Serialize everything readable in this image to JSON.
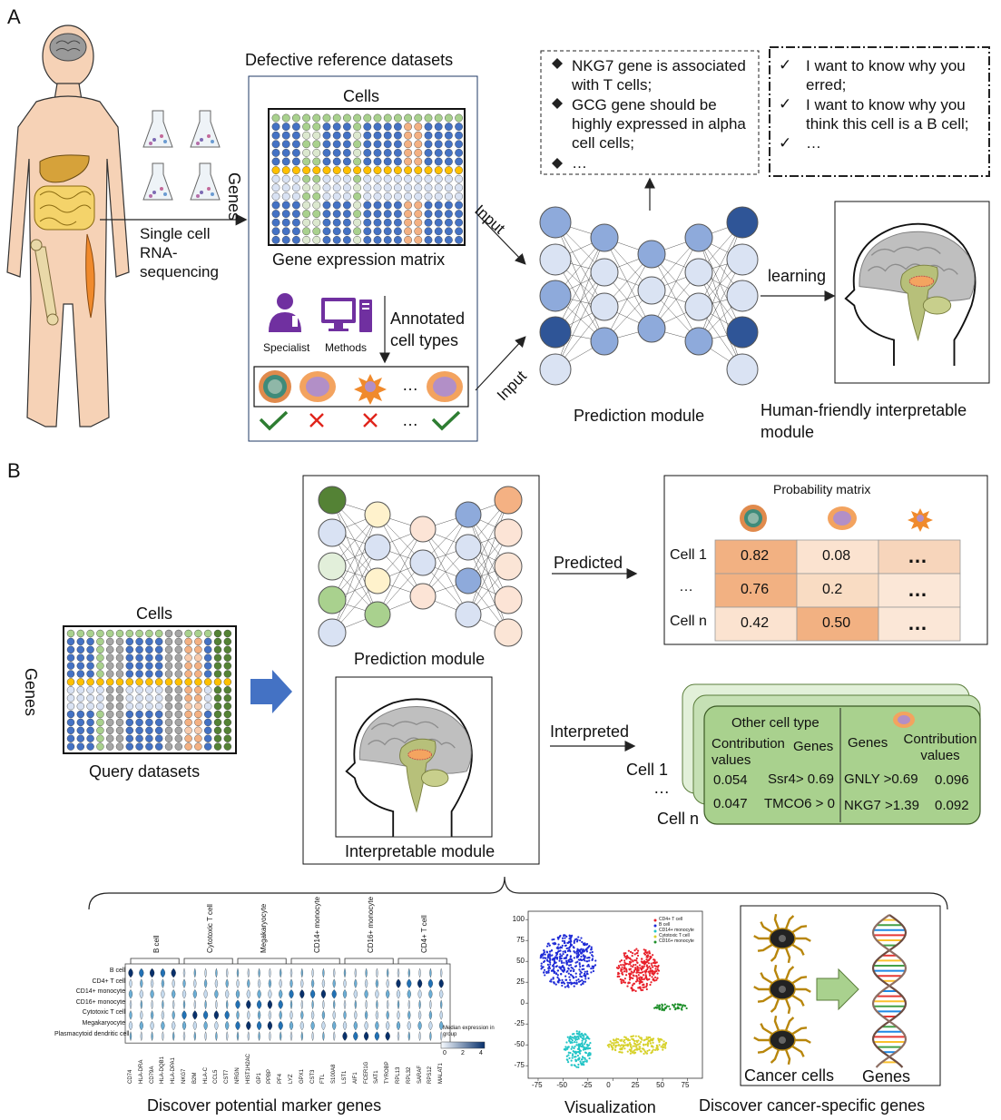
{
  "panels": {
    "a_label": "A",
    "b_label": "B"
  },
  "panel_a": {
    "reference_title": "Defective reference datasets",
    "cells_label": "Cells",
    "genes_label": "Genes",
    "matrix_caption": "Gene expression matrix",
    "sequencing_label": "Single cell RNA-sequencing",
    "specialist_label": "Specialist",
    "methods_label": "Methods",
    "annotated_label": "Annotated cell types",
    "ellipsis": "…",
    "input_label": "Input",
    "prediction_module": "Prediction module",
    "learning_label": "learning",
    "interpretable_caption": "Human-friendly interpretable module",
    "knowledge_box": [
      "NKG7 gene is associated with T cells;",
      "GCG gene should be highly expressed in alpha cell cells;",
      "…"
    ],
    "question_box": [
      "I want to know why you erred;",
      "I want to know why you think this cell is a B cell;",
      "…"
    ]
  },
  "panel_b": {
    "cells_label": "Cells",
    "genes_label": "Genes",
    "query_caption": "Query datasets",
    "prediction_module": "Prediction module",
    "interpretable_module": "Interpretable module",
    "predicted_label": "Predicted",
    "interpreted_label": "Interpreted",
    "probability_title": "Probability matrix",
    "probability_rows": [
      {
        "label": "Cell 1",
        "values": [
          "0.82",
          "0.08",
          "…"
        ]
      },
      {
        "label": "…",
        "values": [
          "0.76",
          "0.2",
          "…"
        ]
      },
      {
        "label": "Cell n",
        "values": [
          "0.42",
          "0.50",
          "…"
        ]
      }
    ],
    "probability_colors": [
      [
        "#f2b182",
        "#fbe3d0",
        "#f7d5bb"
      ],
      [
        "#f2b182",
        "#f9dcc3",
        "#fbe7d7"
      ],
      [
        "#fbe3d0",
        "#f2b182",
        "#fbe7d7"
      ]
    ],
    "contribution": {
      "other_cell_type": "Other cell type",
      "contribution_values": "Contribution values",
      "genes": "Genes",
      "rows_left": [
        {
          "value": "0.054",
          "gene": "Ssr4> 0.69"
        },
        {
          "value": "0.047",
          "gene": "TMCO6 > 0"
        }
      ],
      "rows_right": [
        {
          "gene": "GNLY >0.69",
          "value": "0.096"
        },
        {
          "gene": "NKG7 >1.39",
          "value": "0.092"
        }
      ],
      "cell_1": "Cell 1",
      "dots": "…",
      "cell_n": "Cell n"
    },
    "violin": {
      "groups": [
        "B cell",
        "Cytotoxic T cell",
        "Megakaryocyte",
        "CD14+ monocyte",
        "CD16+ monocyte",
        "CD4+ T cell"
      ],
      "rows": [
        "B cell",
        "CD4+ T cell",
        "CD14+ monocyte",
        "CD16+ monocyte",
        "Cytotoxic T cell",
        "Megakaryocyte",
        "Plasmacytoid dendritic cell"
      ],
      "genes": [
        "CD74",
        "HLA-DRA",
        "CD79A",
        "HLA-DQB1",
        "HLA-DPA1",
        "NKG7",
        "B2M",
        "HLA-C",
        "CCL5",
        "CST7",
        "NRGN",
        "HIST1H2AC",
        "GP1",
        "PPBP",
        "PF4",
        "LYZ",
        "GPX1",
        "CST3",
        "FTL",
        "S100A8",
        "LST1",
        "AIF1",
        "FCER1G",
        "SAT1",
        "TYROBP",
        "RPL13",
        "RPL32",
        "SARAF",
        "RPS12",
        "MALAT1"
      ],
      "legend_title": "Median expression in group",
      "legend_ticks": [
        "0",
        "2",
        "4"
      ],
      "caption": "Discover potential marker genes"
    },
    "tsne": {
      "legend": [
        "CD4+ T cell",
        "B cell",
        "CD14+ monocyte",
        "Cytotoxic T cell",
        "CD16+ monocyte"
      ],
      "colors": [
        "#e8202a",
        "#1f2bd6",
        "#22c4c6",
        "#d7d12a",
        "#1e8f2a"
      ],
      "x_ticks": [
        "-75",
        "-50",
        "-25",
        "0",
        "25",
        "50",
        "75"
      ],
      "y_ticks": [
        "100",
        "75",
        "50",
        "25",
        "0",
        "-25",
        "-50",
        "-75"
      ],
      "caption": "Visualization"
    },
    "cancer": {
      "cells_label": "Cancer cells",
      "genes_label": "Genes",
      "caption": "Discover cancer-specific genes"
    }
  },
  "colors": {
    "node_blue": "#8eaadb",
    "node_light": "#dae3f3",
    "node_dark": "#2f5597",
    "matrix_blue": "#4472c4",
    "matrix_green": "#a9d18e",
    "matrix_orange": "#ffc000",
    "arrow_blue": "#4472c4",
    "box_green": "#a9d18e",
    "check_green": "#2e7d32",
    "cross_red": "#e0241b",
    "purple": "#7030a0"
  }
}
